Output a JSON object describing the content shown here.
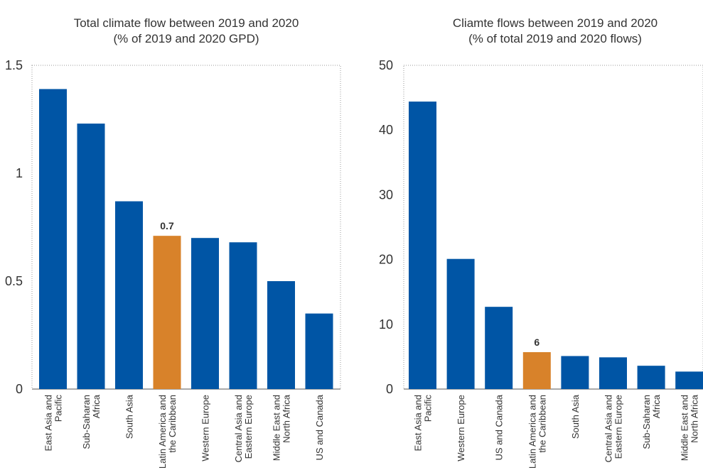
{
  "chart_data": [
    {
      "type": "bar",
      "title": [
        "Total climate flow between 2019 and 2020",
        "(% of 2019 and 2020 GPD)"
      ],
      "ylim": [
        0,
        1.5
      ],
      "yticks": [
        0,
        0.5,
        1,
        1.5
      ],
      "ytick_labels": [
        "0",
        "0.5",
        "1",
        "1.5"
      ],
      "categories": [
        [
          "East Asia and",
          "Pacific"
        ],
        [
          "Sub-Saharan",
          "Africa"
        ],
        [
          "South Asia"
        ],
        [
          "Latin America and",
          "the Caribbean"
        ],
        [
          "Western Europe"
        ],
        [
          "Central Asia and",
          "Eastern Europe"
        ],
        [
          "Middle East and",
          "North Africa"
        ],
        [
          "US and Canada"
        ]
      ],
      "values": [
        1.39,
        1.23,
        0.87,
        0.71,
        0.7,
        0.68,
        0.5,
        0.35
      ],
      "highlight_index": 3,
      "highlight_label": "0.7",
      "grid": false
    },
    {
      "type": "bar",
      "title": [
        "Cliamte flows between 2019 and 2020",
        "(% of total 2019 and 2020 flows)"
      ],
      "ylim": [
        0,
        50
      ],
      "yticks": [
        0,
        10,
        20,
        30,
        40,
        50
      ],
      "ytick_labels": [
        "0",
        "10",
        "20",
        "30",
        "40",
        "50"
      ],
      "categories": [
        [
          "East Asia and",
          "Pacific"
        ],
        [
          "Western Europe"
        ],
        [
          "US and Canada"
        ],
        [
          "Latin America and",
          "the Caribbean"
        ],
        [
          "South Asia"
        ],
        [
          "Central Asia and",
          "Eastern Europe"
        ],
        [
          "Sub-Saharan",
          "Africa"
        ],
        [
          "Middle East and",
          "North Africa"
        ]
      ],
      "values": [
        44.4,
        20.1,
        12.7,
        5.7,
        5.1,
        4.9,
        3.6,
        2.7
      ],
      "highlight_index": 3,
      "highlight_label": "6",
      "grid": false
    }
  ],
  "colors": {
    "bar": "#0055a5",
    "highlight": "#d8822a"
  }
}
